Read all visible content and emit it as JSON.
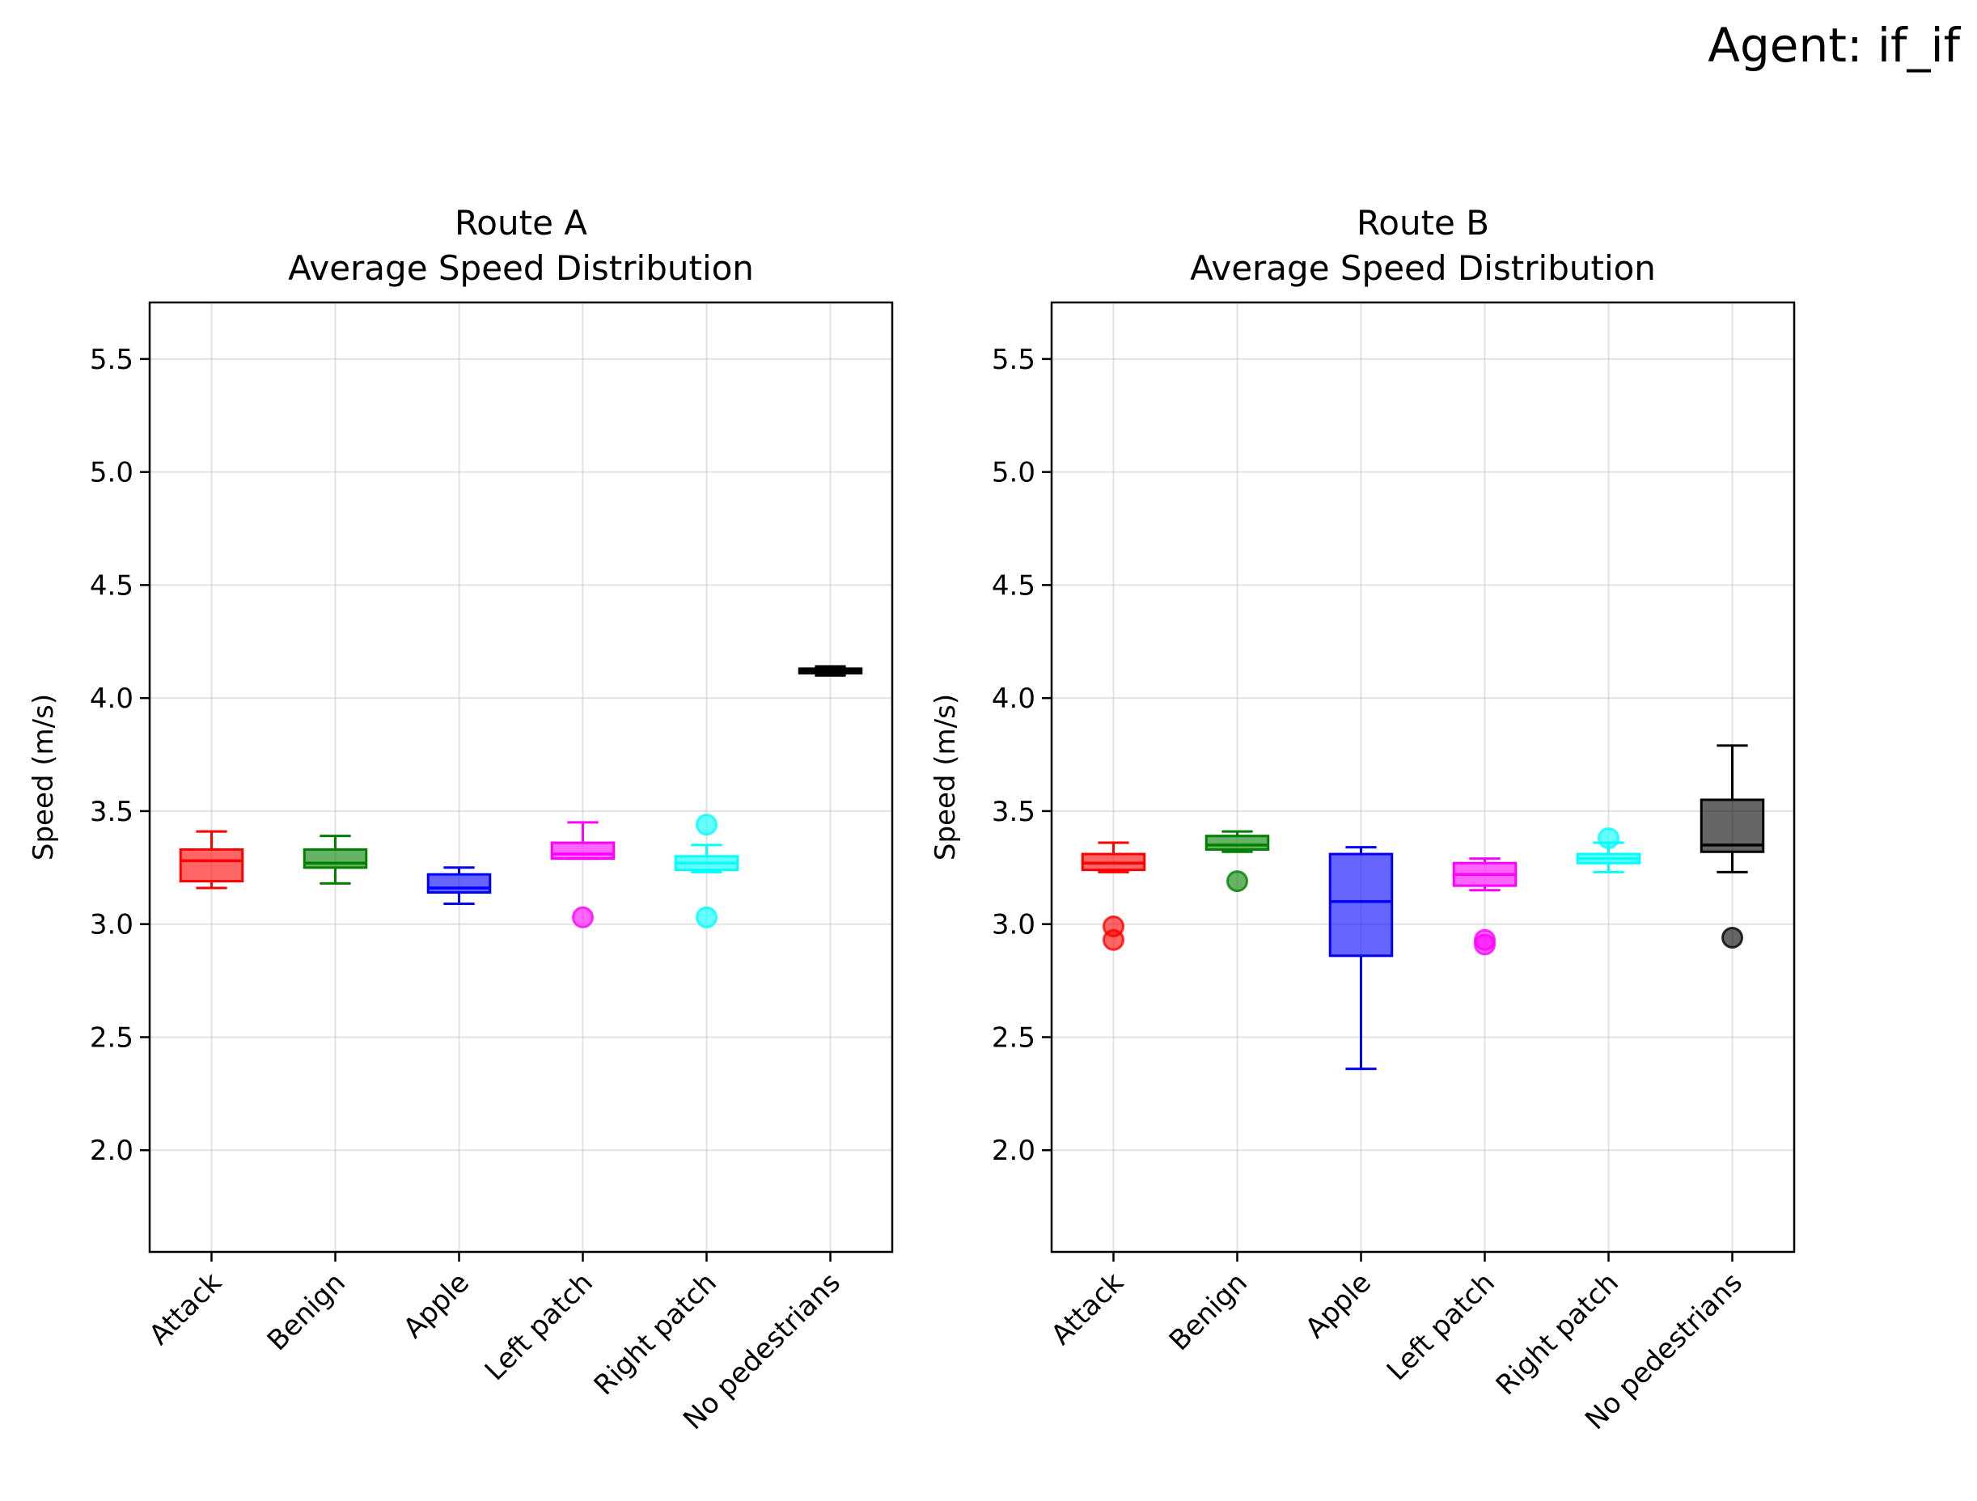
{
  "figure": {
    "suptitle": "Agent: if_if"
  },
  "chart_data": [
    {
      "type": "box",
      "title": "Route A\nAverage Speed Distribution",
      "xlabel": "",
      "ylabel": "Speed (m/s)",
      "ylim": [
        1.55,
        5.75
      ],
      "yticks": [
        2.0,
        2.5,
        3.0,
        3.5,
        4.0,
        4.5,
        5.0,
        5.5
      ],
      "grid": true,
      "categories": [
        "Attack",
        "Benign",
        "Apple",
        "Left patch",
        "Right patch",
        "No pedestrians"
      ],
      "colors": [
        "#ff0000",
        "#008000",
        "#0000ff",
        "#ff00ff",
        "#00ffff",
        "#000000"
      ],
      "boxes": [
        {
          "whislo": 3.16,
          "q1": 3.19,
          "med": 3.28,
          "q3": 3.33,
          "whishi": 3.41,
          "fliers": []
        },
        {
          "whislo": 3.18,
          "q1": 3.25,
          "med": 3.27,
          "q3": 3.33,
          "whishi": 3.39,
          "fliers": []
        },
        {
          "whislo": 3.09,
          "q1": 3.14,
          "med": 3.16,
          "q3": 3.22,
          "whishi": 3.25,
          "fliers": []
        },
        {
          "whislo": 3.29,
          "q1": 3.29,
          "med": 3.31,
          "q3": 3.36,
          "whishi": 3.45,
          "fliers": [
            3.03
          ]
        },
        {
          "whislo": 3.23,
          "q1": 3.24,
          "med": 3.27,
          "q3": 3.3,
          "whishi": 3.35,
          "fliers": [
            3.03,
            3.44
          ]
        },
        {
          "whislo": 4.1,
          "q1": 4.11,
          "med": 4.12,
          "q3": 4.13,
          "whishi": 4.14,
          "fliers": []
        }
      ]
    },
    {
      "type": "box",
      "title": "Route B\nAverage Speed Distribution",
      "xlabel": "",
      "ylabel": "Speed (m/s)",
      "ylim": [
        1.55,
        5.75
      ],
      "yticks": [
        2.0,
        2.5,
        3.0,
        3.5,
        4.0,
        4.5,
        5.0,
        5.5
      ],
      "grid": true,
      "categories": [
        "Attack",
        "Benign",
        "Apple",
        "Left patch",
        "Right patch",
        "No pedestrians"
      ],
      "colors": [
        "#ff0000",
        "#008000",
        "#0000ff",
        "#ff00ff",
        "#00ffff",
        "#000000"
      ],
      "boxes": [
        {
          "whislo": 3.23,
          "q1": 3.24,
          "med": 3.27,
          "q3": 3.31,
          "whishi": 3.36,
          "fliers": [
            2.93,
            2.99
          ]
        },
        {
          "whislo": 3.32,
          "q1": 3.33,
          "med": 3.35,
          "q3": 3.39,
          "whishi": 3.41,
          "fliers": [
            3.19
          ]
        },
        {
          "whislo": 2.36,
          "q1": 2.86,
          "med": 3.1,
          "q3": 3.31,
          "whishi": 3.34,
          "fliers": []
        },
        {
          "whislo": 3.15,
          "q1": 3.17,
          "med": 3.22,
          "q3": 3.27,
          "whishi": 3.29,
          "fliers": [
            2.91,
            2.93
          ]
        },
        {
          "whislo": 3.23,
          "q1": 3.27,
          "med": 3.29,
          "q3": 3.31,
          "whishi": 3.36,
          "fliers": [
            3.38
          ]
        },
        {
          "whislo": 3.23,
          "q1": 3.32,
          "med": 3.35,
          "q3": 3.55,
          "whishi": 3.79,
          "fliers": [
            2.94
          ]
        }
      ]
    }
  ]
}
